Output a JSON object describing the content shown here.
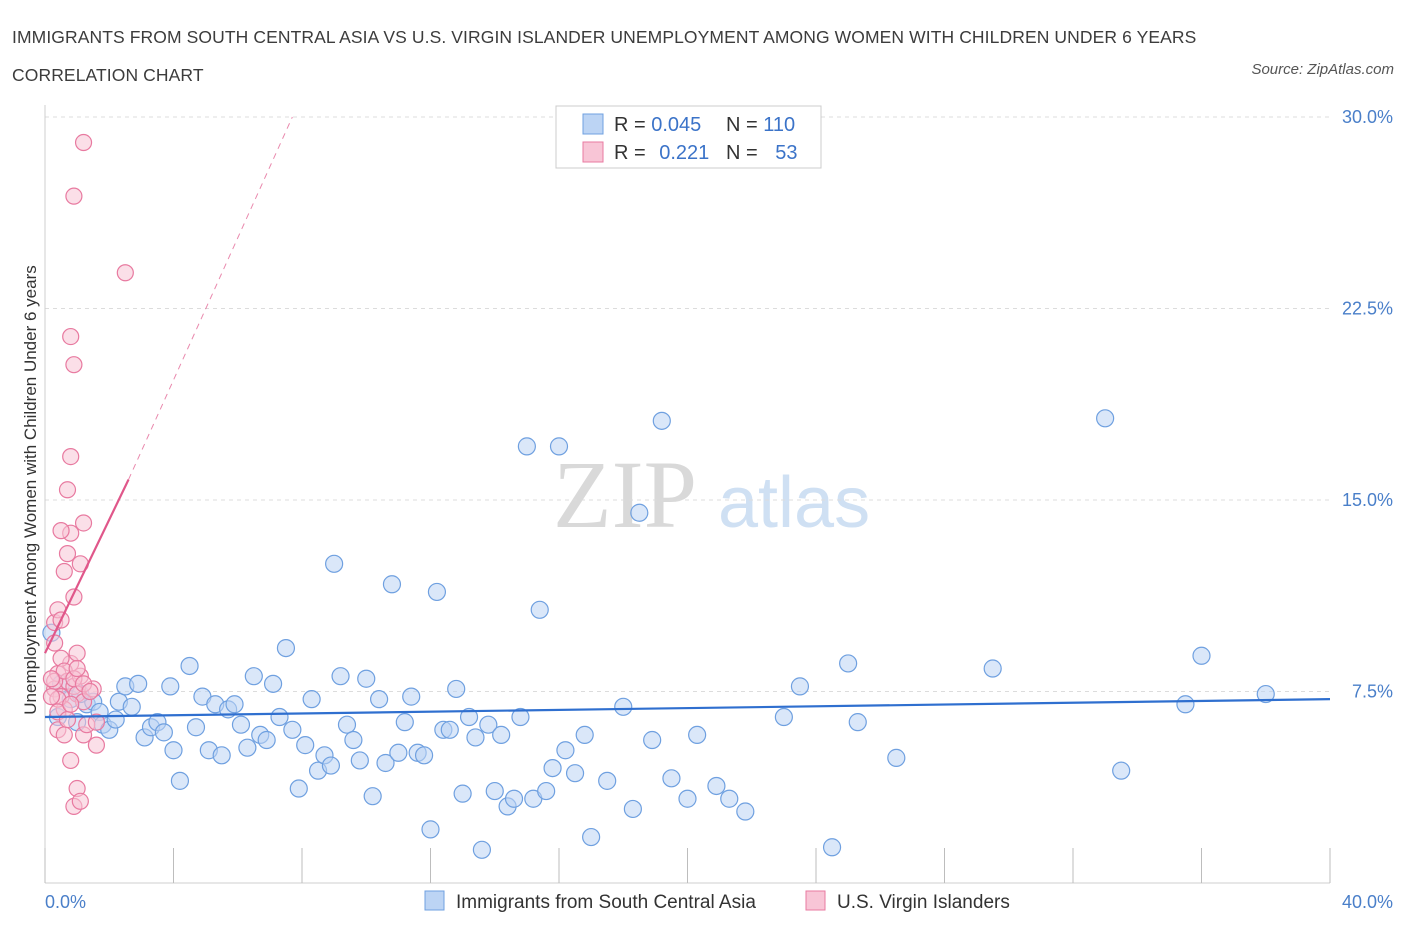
{
  "title": "IMMIGRANTS FROM SOUTH CENTRAL ASIA VS U.S. VIRGIN ISLANDER UNEMPLOYMENT AMONG WOMEN WITH CHILDREN UNDER 6 YEARS CORRELATION CHART",
  "source": "Source: ZipAtlas.com",
  "watermark": {
    "zip": "ZIP",
    "atlas": "atlas"
  },
  "legend_box": {
    "rows": [
      {
        "r_label": "R = ",
        "r_value": "0.045",
        "n_label": "N = ",
        "n_value": "110",
        "color": "#a9c8f0"
      },
      {
        "r_label": "R = ",
        "r_value": "0.221",
        "n_label": "N = ",
        "n_value": "53",
        "color": "#f7b6c9"
      }
    ]
  },
  "chart_data": {
    "type": "scatter",
    "title": "IMMIGRANTS FROM SOUTH CENTRAL ASIA VS U.S. VIRGIN ISLANDER UNEMPLOYMENT AMONG WOMEN WITH CHILDREN UNDER 6 YEARS CORRELATION CHART",
    "ylabel": "Unemployment Among Women with Children Under 6 years",
    "xlabel": "",
    "xlim": [
      0,
      40
    ],
    "ylim": [
      0,
      30
    ],
    "x_tick_labels": [
      "0.0%",
      "40.0%"
    ],
    "y_ticks": [
      7.5,
      15.0,
      22.5,
      30.0
    ],
    "y_tick_labels": [
      "7.5%",
      "15.0%",
      "22.5%",
      "30.0%"
    ],
    "grid": "horizontal dashed",
    "series": [
      {
        "name": "Immigrants from South Central Asia",
        "color": "#6fa0e0",
        "fill": "#bcd4f4",
        "R": 0.045,
        "N": 110,
        "trend": {
          "x0": 0.0,
          "y0": 6.5,
          "x1": 40.0,
          "y1": 7.2,
          "color": "#2f6fcf"
        },
        "points": [
          [
            0.2,
            9.8
          ],
          [
            0.5,
            7.8
          ],
          [
            0.8,
            7.2
          ],
          [
            1.0,
            6.3
          ],
          [
            1.3,
            7.0
          ],
          [
            1.5,
            7.1
          ],
          [
            1.7,
            6.7
          ],
          [
            1.8,
            6.2
          ],
          [
            2.0,
            6.0
          ],
          [
            2.3,
            7.1
          ],
          [
            2.5,
            7.7
          ],
          [
            2.7,
            6.9
          ],
          [
            2.9,
            7.8
          ],
          [
            3.1,
            5.7
          ],
          [
            3.3,
            6.1
          ],
          [
            3.5,
            6.3
          ],
          [
            3.7,
            5.9
          ],
          [
            3.9,
            7.7
          ],
          [
            4.0,
            5.2
          ],
          [
            4.2,
            4.0
          ],
          [
            4.5,
            8.5
          ],
          [
            4.7,
            6.1
          ],
          [
            4.9,
            7.3
          ],
          [
            5.1,
            5.2
          ],
          [
            5.3,
            7.0
          ],
          [
            5.5,
            5.0
          ],
          [
            5.7,
            6.8
          ],
          [
            5.9,
            7.0
          ],
          [
            6.1,
            6.2
          ],
          [
            6.3,
            5.3
          ],
          [
            6.5,
            8.1
          ],
          [
            6.7,
            5.8
          ],
          [
            6.9,
            5.6
          ],
          [
            7.1,
            7.8
          ],
          [
            7.3,
            6.5
          ],
          [
            7.5,
            9.2
          ],
          [
            7.7,
            6.0
          ],
          [
            7.9,
            3.7
          ],
          [
            8.1,
            5.4
          ],
          [
            8.3,
            7.2
          ],
          [
            8.5,
            4.4
          ],
          [
            8.7,
            5.0
          ],
          [
            8.9,
            4.6
          ],
          [
            9.0,
            12.5
          ],
          [
            9.2,
            8.1
          ],
          [
            9.4,
            6.2
          ],
          [
            9.6,
            5.6
          ],
          [
            9.8,
            4.8
          ],
          [
            10.0,
            8.0
          ],
          [
            10.2,
            3.4
          ],
          [
            10.4,
            7.2
          ],
          [
            10.6,
            4.7
          ],
          [
            10.8,
            11.7
          ],
          [
            11.0,
            5.1
          ],
          [
            11.2,
            6.3
          ],
          [
            11.4,
            7.3
          ],
          [
            11.6,
            5.1
          ],
          [
            11.8,
            5.0
          ],
          [
            12.0,
            2.1
          ],
          [
            12.2,
            11.4
          ],
          [
            12.4,
            6.0
          ],
          [
            12.6,
            6.0
          ],
          [
            12.8,
            7.6
          ],
          [
            13.0,
            3.5
          ],
          [
            13.2,
            6.5
          ],
          [
            13.4,
            5.7
          ],
          [
            13.6,
            1.3
          ],
          [
            13.8,
            6.2
          ],
          [
            14.0,
            3.6
          ],
          [
            14.2,
            5.8
          ],
          [
            14.4,
            3.0
          ],
          [
            14.6,
            3.3
          ],
          [
            14.8,
            6.5
          ],
          [
            15.0,
            17.1
          ],
          [
            15.2,
            3.3
          ],
          [
            15.4,
            10.7
          ],
          [
            15.6,
            3.6
          ],
          [
            15.8,
            4.5
          ],
          [
            16.0,
            17.1
          ],
          [
            16.2,
            5.2
          ],
          [
            16.5,
            4.3
          ],
          [
            16.8,
            5.8
          ],
          [
            17.0,
            1.8
          ],
          [
            17.5,
            4.0
          ],
          [
            18.0,
            6.9
          ],
          [
            18.3,
            2.9
          ],
          [
            18.5,
            14.5
          ],
          [
            18.9,
            5.6
          ],
          [
            19.2,
            18.1
          ],
          [
            19.5,
            4.1
          ],
          [
            20.0,
            3.3
          ],
          [
            20.3,
            5.8
          ],
          [
            20.9,
            3.8
          ],
          [
            21.3,
            3.3
          ],
          [
            21.8,
            2.8
          ],
          [
            23.0,
            6.5
          ],
          [
            23.5,
            7.7
          ],
          [
            24.5,
            1.4
          ],
          [
            25.0,
            8.6
          ],
          [
            25.3,
            6.3
          ],
          [
            26.5,
            4.9
          ],
          [
            29.5,
            8.4
          ],
          [
            33.0,
            18.2
          ],
          [
            33.5,
            4.4
          ],
          [
            35.5,
            7.0
          ],
          [
            36.0,
            8.9
          ],
          [
            38.0,
            7.4
          ],
          [
            0.4,
            6.5
          ],
          [
            2.2,
            6.4
          ],
          [
            1.1,
            7.4
          ]
        ]
      },
      {
        "name": "U.S. Virgin Islanders",
        "color": "#e87aa0",
        "fill": "#f8c5d6",
        "R": 0.221,
        "N": 53,
        "trend": {
          "x0": 0.0,
          "y0": 9.0,
          "x1": 2.6,
          "y1": 15.8,
          "color": "#e0578a"
        },
        "trend_dashed": {
          "x0": 2.6,
          "y0": 15.8,
          "x1": 7.7,
          "y1": 30.0
        },
        "points": [
          [
            0.3,
            7.6
          ],
          [
            0.4,
            8.2
          ],
          [
            0.5,
            7.3
          ],
          [
            0.6,
            6.8
          ],
          [
            0.7,
            7.9
          ],
          [
            0.8,
            8.6
          ],
          [
            0.9,
            7.7
          ],
          [
            1.0,
            7.4
          ],
          [
            1.1,
            8.1
          ],
          [
            1.2,
            7.1
          ],
          [
            0.3,
            10.2
          ],
          [
            0.4,
            10.7
          ],
          [
            0.5,
            10.3
          ],
          [
            0.6,
            12.2
          ],
          [
            0.7,
            12.9
          ],
          [
            0.8,
            13.7
          ],
          [
            0.9,
            11.2
          ],
          [
            1.0,
            9.0
          ],
          [
            1.1,
            12.5
          ],
          [
            1.2,
            14.1
          ],
          [
            0.5,
            13.8
          ],
          [
            0.7,
            15.4
          ],
          [
            0.8,
            16.7
          ],
          [
            0.9,
            20.3
          ],
          [
            0.8,
            21.4
          ],
          [
            0.9,
            26.9
          ],
          [
            1.2,
            29.0
          ],
          [
            2.5,
            23.9
          ],
          [
            0.4,
            6.0
          ],
          [
            0.6,
            5.8
          ],
          [
            0.8,
            4.8
          ],
          [
            0.9,
            3.0
          ],
          [
            1.0,
            3.7
          ],
          [
            1.1,
            3.2
          ],
          [
            1.2,
            5.8
          ],
          [
            1.3,
            6.2
          ],
          [
            1.5,
            7.6
          ],
          [
            1.6,
            5.4
          ],
          [
            0.3,
            7.9
          ],
          [
            0.4,
            7.2
          ],
          [
            0.5,
            8.8
          ],
          [
            0.6,
            8.3
          ],
          [
            0.2,
            8.0
          ],
          [
            0.2,
            7.3
          ],
          [
            0.3,
            9.4
          ],
          [
            0.4,
            6.7
          ],
          [
            0.7,
            6.4
          ],
          [
            0.8,
            7.0
          ],
          [
            0.9,
            8.0
          ],
          [
            1.0,
            8.4
          ],
          [
            1.2,
            7.8
          ],
          [
            1.4,
            7.5
          ],
          [
            1.6,
            6.3
          ]
        ]
      }
    ]
  },
  "bottom_legend": [
    {
      "label": "Immigrants from South Central Asia",
      "color": "#a9c8f0"
    },
    {
      "label": "U.S. Virgin Islanders",
      "color": "#f7b6c9"
    }
  ]
}
